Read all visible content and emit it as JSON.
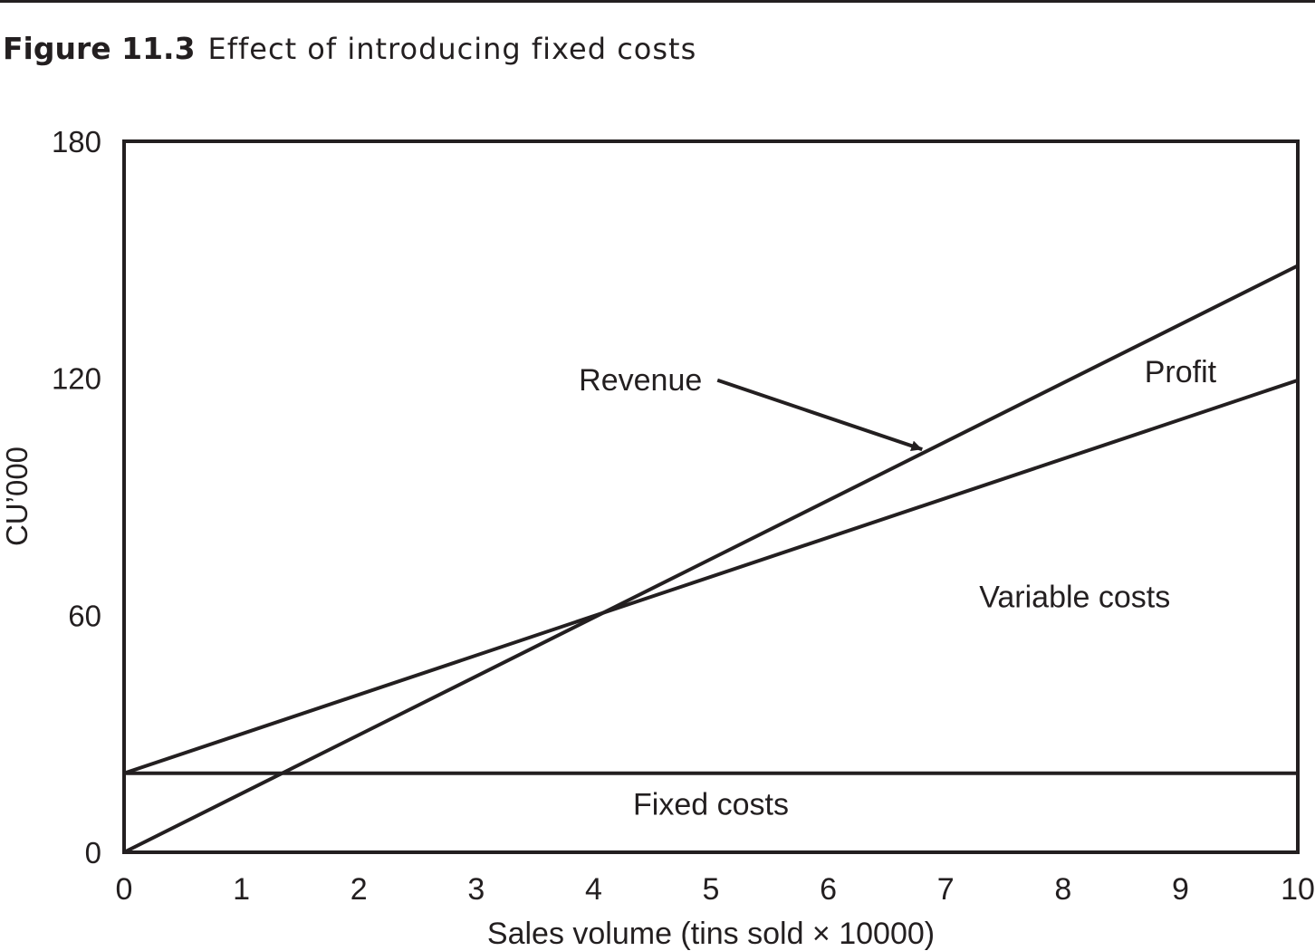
{
  "figure": {
    "number": "Figure 11.3",
    "caption": "Effect of introducing fixed costs"
  },
  "chart_data": {
    "type": "line",
    "xlabel": "Sales volume (tins sold × 10000)",
    "ylabel": "CU’000",
    "xlim": [
      0,
      10
    ],
    "ylim": [
      0,
      180
    ],
    "x_ticks": [
      "0",
      "1",
      "2",
      "3",
      "4",
      "5",
      "6",
      "7",
      "8",
      "9",
      "10"
    ],
    "y_ticks": [
      "0",
      "60",
      "120",
      "180"
    ],
    "grid": false,
    "series": [
      {
        "name": "Revenue",
        "x": [
          0,
          10
        ],
        "y": [
          0,
          148.5
        ]
      },
      {
        "x": [
          0,
          10
        ],
        "y": [
          20,
          119.5
        ]
      },
      {
        "x": [
          0,
          10
        ],
        "y": [
          20,
          20
        ]
      }
    ],
    "annotations": [
      {
        "text": "Revenue",
        "x": 4.4,
        "y": 117,
        "arrow_to": [
          6.8,
          102
        ]
      },
      {
        "text": "Profit",
        "x": 9.0,
        "y": 119
      },
      {
        "text": "Variable costs",
        "x": 8.1,
        "y": 62
      },
      {
        "text": "Fixed costs",
        "x": 5.0,
        "y": 9.5
      }
    ],
    "colors": {
      "line": "#231f20",
      "background": "#ffffff"
    }
  }
}
